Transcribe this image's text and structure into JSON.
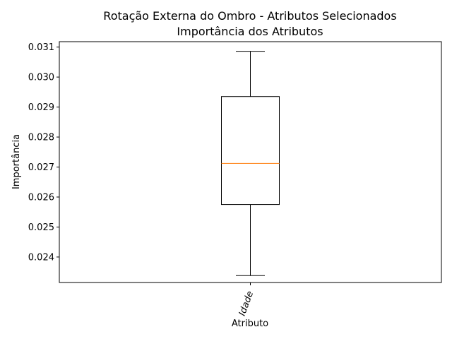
{
  "chart_data": {
    "type": "boxplot",
    "title": "Rotação Externa do Ombro - Atributos Selecionados",
    "subtitle": "Importância dos Atributos",
    "xlabel": "Atributo",
    "ylabel": "Importância",
    "categories": [
      "Idade"
    ],
    "boxes": [
      {
        "category": "Idade",
        "whisker_low": 0.02338,
        "q1": 0.02575,
        "median": 0.02712,
        "q3": 0.02935,
        "whisker_high": 0.03086
      }
    ],
    "ylim": [
      0.02315,
      0.03118
    ],
    "yticks": [
      0.024,
      0.025,
      0.026,
      0.027,
      0.028,
      0.029,
      0.03,
      0.031
    ],
    "ytick_labels": [
      "0.024",
      "0.025",
      "0.026",
      "0.027",
      "0.028",
      "0.029",
      "0.030",
      "0.031"
    ],
    "grid": false,
    "median_color": "#ff7f0e",
    "box_color": "#000000"
  }
}
